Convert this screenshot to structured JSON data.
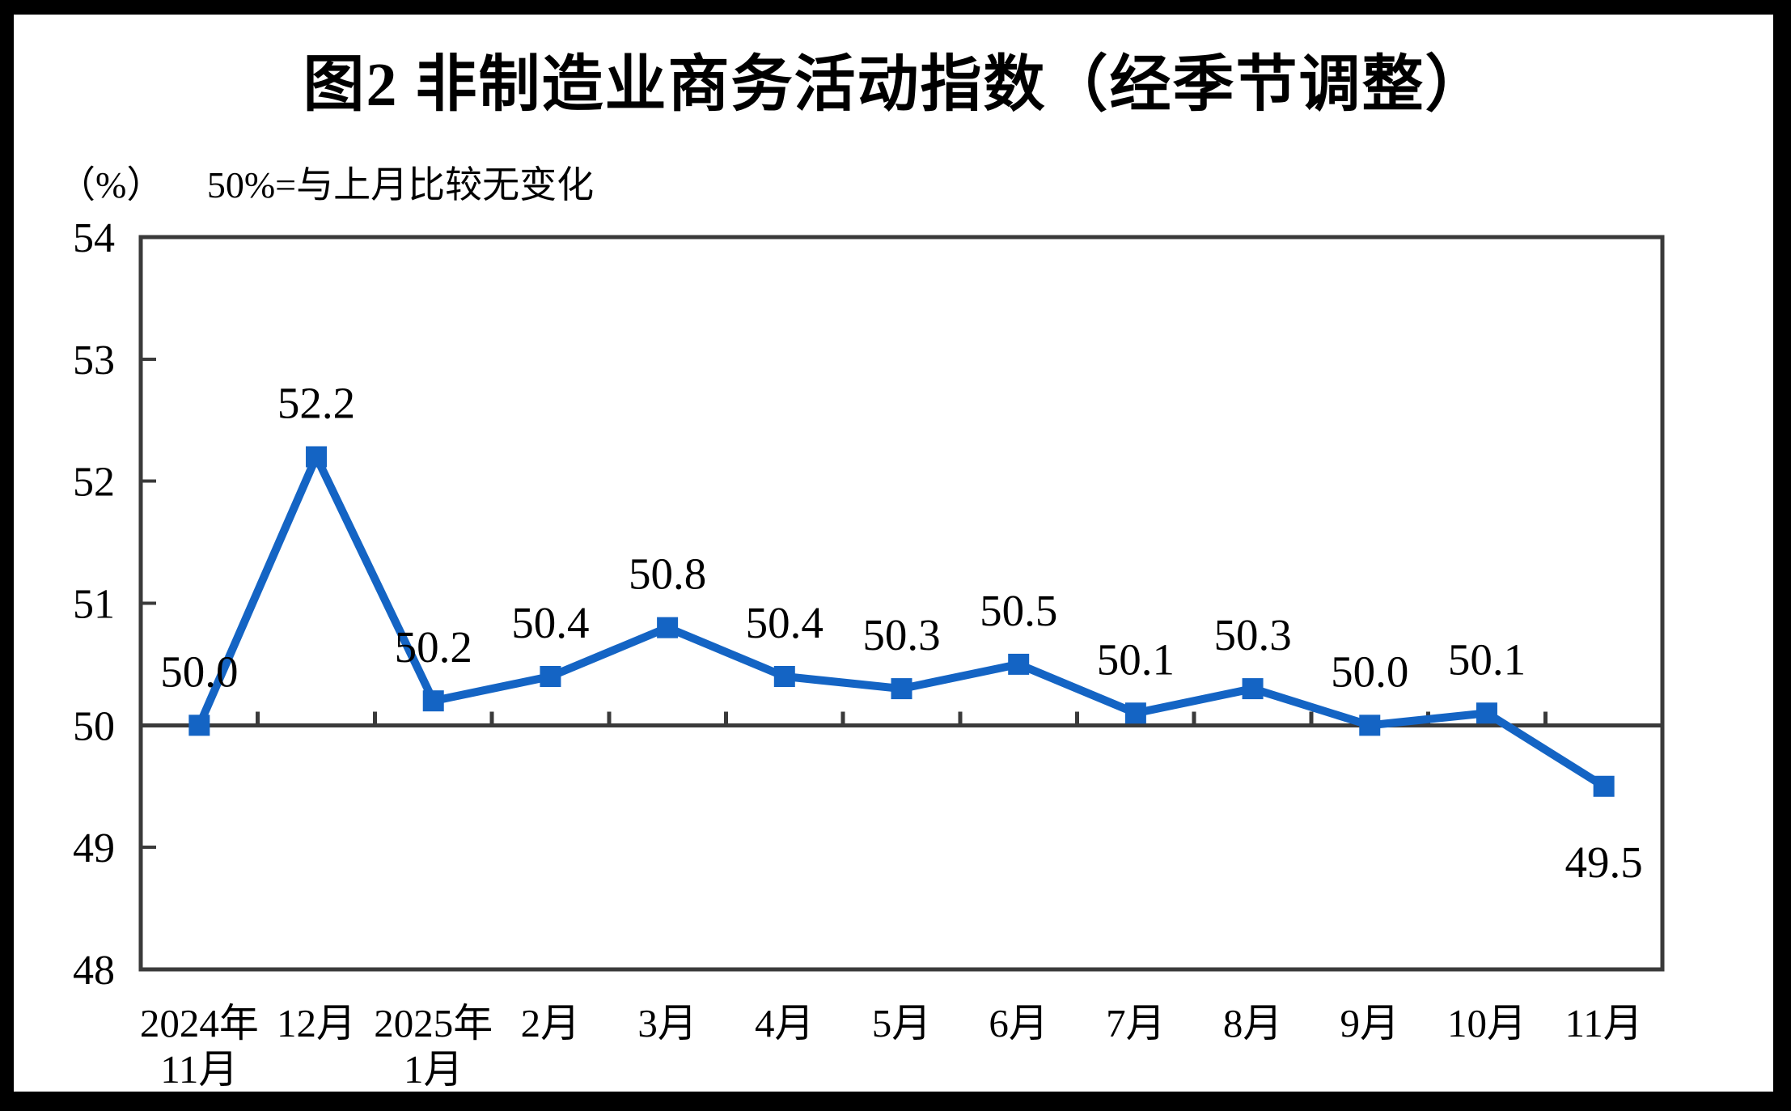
{
  "page": {
    "title": "图2 非制造业商务活动指数（经季节调整）",
    "unit_note": "（%）",
    "reference_note": "50%=与上月比较无变化"
  },
  "chart_data": {
    "type": "line",
    "title": "图2 非制造业商务活动指数（经季节调整）",
    "unit_label": "（%）",
    "annotation": "50%=与上月比较无变化",
    "categories": [
      "2024年\n11月",
      "12月",
      "2025年\n1月",
      "2月",
      "3月",
      "4月",
      "5月",
      "6月",
      "7月",
      "8月",
      "9月",
      "10月",
      "11月"
    ],
    "values": [
      50.0,
      52.2,
      50.2,
      50.4,
      50.8,
      50.4,
      50.3,
      50.5,
      50.1,
      50.3,
      50.0,
      50.1,
      49.5
    ],
    "data_labels": [
      "50.0",
      "52.2",
      "50.2",
      "50.4",
      "50.8",
      "50.4",
      "50.3",
      "50.5",
      "50.1",
      "50.3",
      "50.0",
      "50.1",
      "49.5"
    ],
    "label_below_indices": [
      12
    ],
    "ylim": [
      48,
      54
    ],
    "yticks": [
      48,
      49,
      50,
      51,
      52,
      53,
      54
    ],
    "reference_line": 50,
    "grid": "off",
    "legend": "none",
    "line_color": "#1464C4",
    "marker": "square",
    "axis_color": "#3A3A3A",
    "text_color": "#000000"
  }
}
